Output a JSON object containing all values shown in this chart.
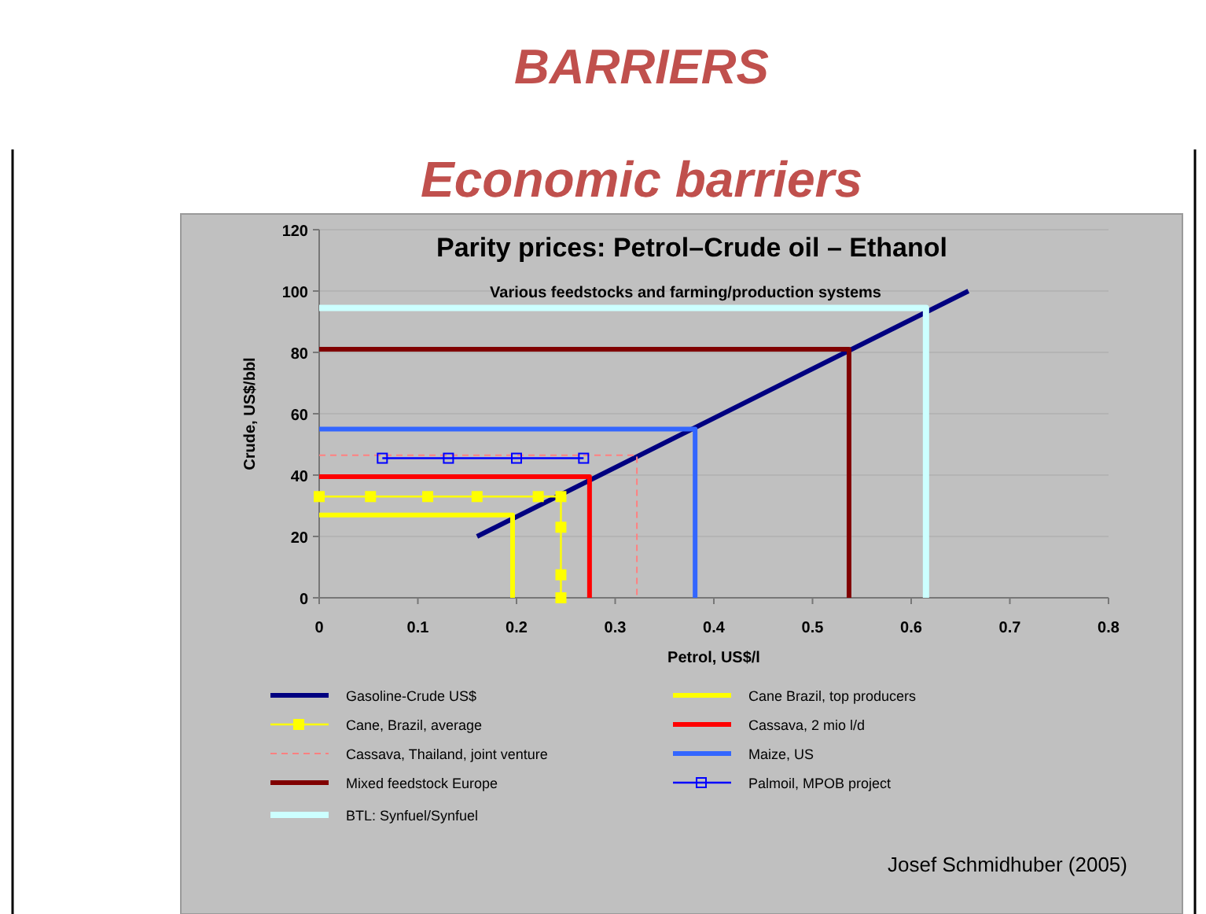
{
  "chart_data": {
    "type": "line",
    "title": "Parity prices: Petrol–Crude oil – Ethanol",
    "subtitle": "Various feedstocks and farming/production systems",
    "xlabel": "Petrol, US$/l",
    "ylabel": "Crude, US$/bbl",
    "annotations": [
      "BARRIERS",
      "Economic barriers",
      "Josef Schmidhuber (2005)"
    ],
    "xlim": [
      0,
      0.8
    ],
    "xticks": [
      0,
      0.1,
      0.2,
      0.3,
      0.4,
      0.5,
      0.6,
      0.7,
      0.8
    ],
    "ylim": [
      0,
      120
    ],
    "yticks": [
      0,
      20,
      40,
      60,
      80,
      100,
      120
    ],
    "grid": "y",
    "legend": "bottom",
    "marker": "none",
    "line_style": "solid",
    "series": [
      {
        "name": "Gasoline-Crude US$",
        "color": "#000080",
        "x": [
          0.16,
          0.658
        ],
        "values": [
          20,
          100
        ]
      },
      {
        "name": "Cane, Brazil, average",
        "color": "#ffff00",
        "marker": "square",
        "x": [
          0,
          0.052,
          0.11,
          0.16,
          0.222,
          0.245,
          0.245,
          0.245,
          0.245
        ],
        "values": [
          33,
          33,
          33,
          33,
          33,
          33,
          23,
          7.5,
          0
        ]
      },
      {
        "name": "Cassava, Thailand, joint venture",
        "color": "#ff8080",
        "line_style": "dashed",
        "x": [
          0,
          0.322,
          0.322
        ],
        "values": [
          46.5,
          46.5,
          0
        ]
      },
      {
        "name": "Mixed feedstock Europe",
        "color": "#800000",
        "x": [
          0,
          0.537,
          0.537
        ],
        "values": [
          81,
          81,
          0
        ]
      },
      {
        "name": "BTL: Synfuel/Synfuel",
        "color": "#ccffff",
        "x": [
          0,
          0.615,
          0.615
        ],
        "values": [
          94.5,
          94.5,
          0
        ]
      },
      {
        "name": "Cane Brazil, top producers",
        "color": "#ffff00",
        "x": [
          0,
          0.196,
          0.196
        ],
        "values": [
          27,
          27,
          0
        ]
      },
      {
        "name": "Cassava, 2 mio l/d",
        "color": "#ff0000",
        "x": [
          0,
          0.274,
          0.274
        ],
        "values": [
          39.5,
          39.5,
          0
        ]
      },
      {
        "name": "Maize, US",
        "color": "#3366ff",
        "x": [
          0,
          0.381,
          0.381
        ],
        "values": [
          55,
          55,
          0
        ]
      },
      {
        "name": "Palmoil, MPOB project",
        "color": "#0000ff",
        "marker": "square",
        "x": [
          0.064,
          0.131,
          0.2,
          0.268
        ],
        "values": [
          45.5,
          45.5,
          45.5,
          45.5
        ]
      }
    ]
  }
}
